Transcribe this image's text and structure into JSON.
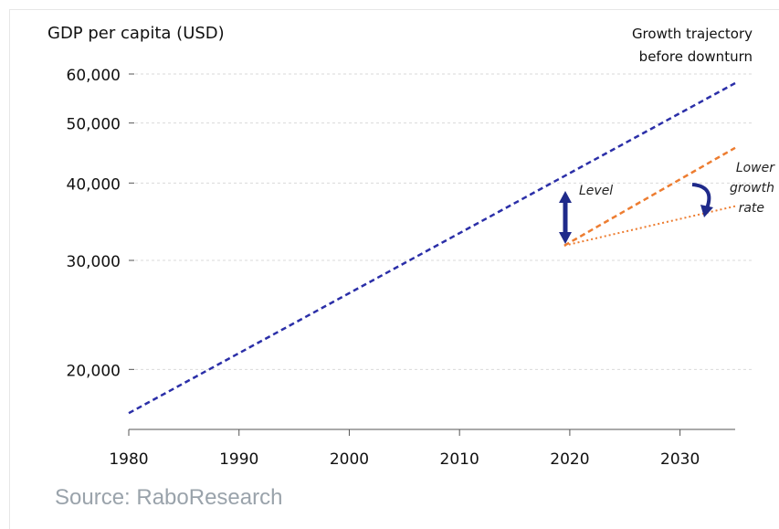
{
  "chart_data": {
    "type": "line",
    "y_axis_title": "GDP per capita (USD)",
    "y_scale": "log",
    "x_ticks": [
      "1980",
      "1990",
      "2000",
      "2010",
      "2020",
      "2030"
    ],
    "y_ticks": [
      {
        "value": 20000,
        "label": "20,000"
      },
      {
        "value": 30000,
        "label": "30,000"
      },
      {
        "value": 40000,
        "label": "40,000"
      },
      {
        "value": 50000,
        "label": "50,000"
      },
      {
        "value": 60000,
        "label": "60,000"
      }
    ],
    "xlim": [
      1980,
      2035
    ],
    "ylim": [
      16000,
      64000
    ],
    "grid": true,
    "series": [
      {
        "color": "#2b2fa8",
        "style": "dashed",
        "points": [
          [
            1980,
            17000
          ],
          [
            2035,
            58000
          ]
        ]
      },
      {
        "color": "#ed7d31",
        "style": "dashed",
        "points": [
          [
            2019.5,
            31700
          ],
          [
            2035,
            45600
          ]
        ]
      },
      {
        "color": "#ed7d31",
        "style": "dotted",
        "points": [
          [
            2019.5,
            31700
          ],
          [
            2035,
            36700
          ]
        ]
      }
    ],
    "annotations": {
      "trajectory": [
        "Growth trajectory",
        "before downturn"
      ],
      "level": "Level",
      "lower_growth": [
        "Lower",
        "growth",
        "rate"
      ]
    },
    "annotation_color": "#1f2a8a"
  },
  "footer": {
    "source": "Source: RaboResearch"
  }
}
